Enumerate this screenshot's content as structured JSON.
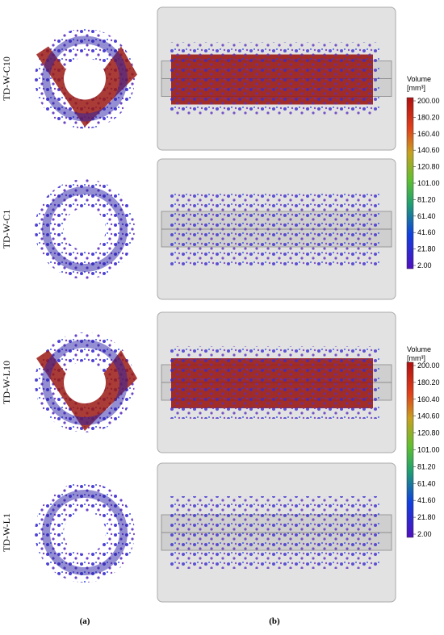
{
  "rows": [
    {
      "label": "TD-W-C10"
    },
    {
      "label": "TD-W-C1"
    },
    {
      "label": "TD-W-L10"
    },
    {
      "label": "TD-W-L1"
    }
  ],
  "colorbars": [
    {
      "title": "Volume",
      "unit": "[mm³]",
      "ticks": [
        "200.00",
        "180.20",
        "160.40",
        "140.60",
        "120.80",
        "101.00",
        "81.20",
        "61.40",
        "41.60",
        "21.80",
        "2.00"
      ]
    },
    {
      "title": "Volume",
      "unit": "[mm³]",
      "ticks": [
        "200.00",
        "180.20",
        "160.40",
        "140.60",
        "120.80",
        "101.00",
        "81.20",
        "61.40",
        "41.60",
        "21.80",
        "2.00"
      ]
    }
  ],
  "panels": [
    "(a)",
    "(b)"
  ]
}
